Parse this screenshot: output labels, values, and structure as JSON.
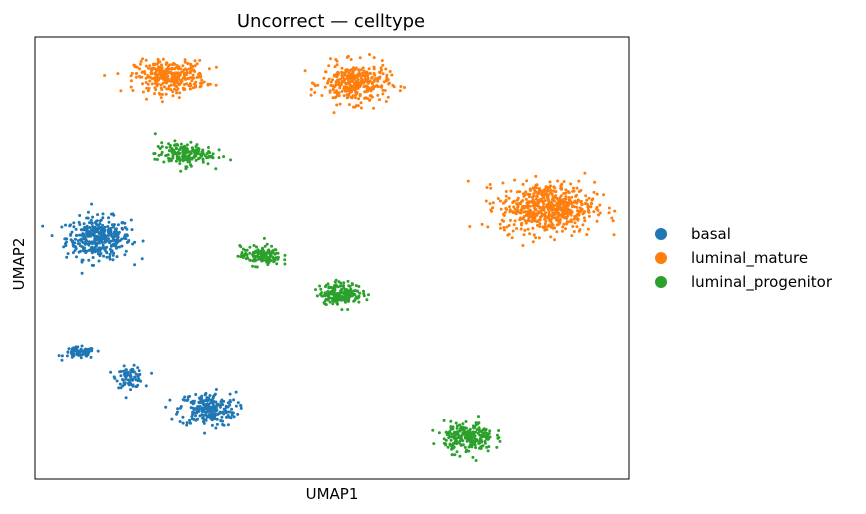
{
  "chart_data": {
    "type": "scatter",
    "title": "Uncorrect — celltype",
    "xlabel": "UMAP1",
    "ylabel": "UMAP2",
    "xlim": [
      0,
      100
    ],
    "ylim": [
      0,
      100
    ],
    "grid": false,
    "ticks": "none",
    "legend": {
      "placement": "right-outside",
      "entries": [
        "basal",
        "luminal_mature",
        "luminal_progenitor"
      ]
    },
    "series": [
      {
        "name": "basal",
        "color": "#1f77b4",
        "clusters": [
          {
            "x": 10.7,
            "y": 54.5,
            "sx": 5.4,
            "sy": 4.7,
            "n": 380
          },
          {
            "x": 7.5,
            "y": 28.5,
            "sx": 2.6,
            "sy": 1.3,
            "n": 80
          },
          {
            "x": 16.0,
            "y": 23.0,
            "sx": 2.3,
            "sy": 2.3,
            "n": 90
          },
          {
            "x": 29.0,
            "y": 15.8,
            "sx": 4.8,
            "sy": 3.8,
            "n": 240
          }
        ]
      },
      {
        "name": "luminal_mature",
        "color": "#ff7f0e",
        "clusters": [
          {
            "x": 22.8,
            "y": 91.0,
            "sx": 5.9,
            "sy": 3.6,
            "n": 330
          },
          {
            "x": 53.9,
            "y": 89.5,
            "sx": 5.6,
            "sy": 4.5,
            "n": 330
          },
          {
            "x": 86.3,
            "y": 61.4,
            "sx": 7.9,
            "sy": 5.7,
            "n": 600
          }
        ]
      },
      {
        "name": "luminal_progenitor",
        "color": "#2ca02c",
        "clusters": [
          {
            "x": 25.0,
            "y": 73.5,
            "sx": 4.8,
            "sy": 2.6,
            "n": 180
          },
          {
            "x": 38.0,
            "y": 50.5,
            "sx": 3.4,
            "sy": 2.2,
            "n": 140
          },
          {
            "x": 51.5,
            "y": 42.0,
            "sx": 3.6,
            "sy": 2.4,
            "n": 200
          },
          {
            "x": 73.0,
            "y": 9.5,
            "sx": 4.1,
            "sy": 3.4,
            "n": 240
          }
        ]
      }
    ]
  }
}
